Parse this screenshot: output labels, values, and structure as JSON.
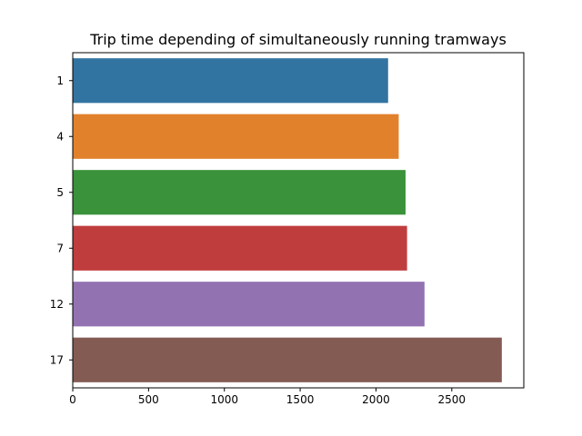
{
  "chart_data": {
    "type": "bar",
    "orientation": "horizontal",
    "title": "Trip time depending of simultaneously running tramways",
    "xlabel": "",
    "ylabel": "",
    "categories": [
      "1",
      "4",
      "5",
      "7",
      "12",
      "17"
    ],
    "values": [
      2080,
      2150,
      2195,
      2205,
      2320,
      2830
    ],
    "colors": [
      "#3274a1",
      "#e1812c",
      "#3a923a",
      "#c03d3e",
      "#9372b2",
      "#845b53"
    ],
    "xlim": [
      0,
      2975
    ],
    "xticks": [
      0,
      500,
      1000,
      1500,
      2000,
      2500
    ],
    "grid": false,
    "legend": "none"
  }
}
